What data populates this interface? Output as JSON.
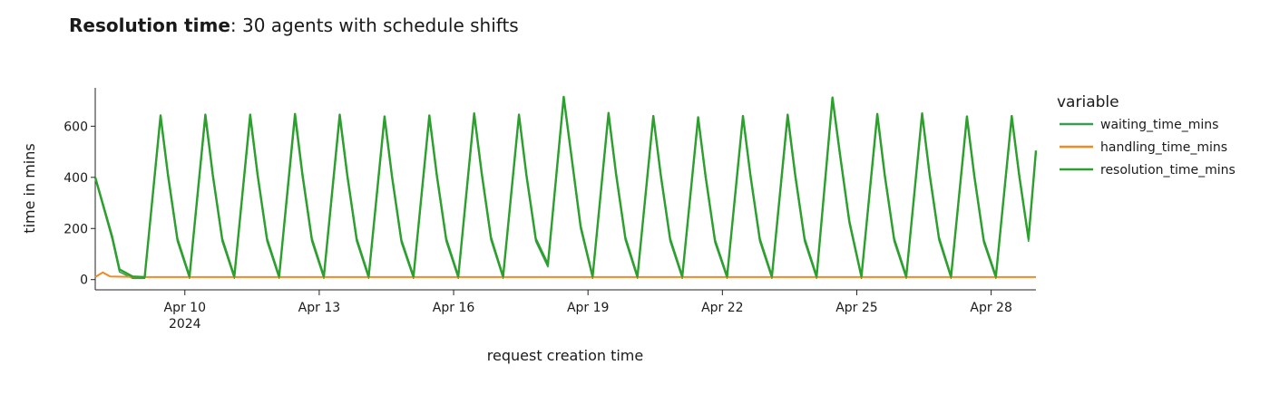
{
  "chart_data": {
    "type": "line",
    "title": "Resolution time",
    "subtitle": ": 30 agents with schedule shifts",
    "xlabel": "request creation time",
    "ylabel": "time in mins",
    "ylim": [
      -40,
      750
    ],
    "xlim": [
      "2024-04-08",
      "2024-04-29"
    ],
    "x_ticks": [
      {
        "date": "2024-04-10",
        "label": "Apr 10",
        "sublabel": "2024"
      },
      {
        "date": "2024-04-13",
        "label": "Apr 13",
        "sublabel": ""
      },
      {
        "date": "2024-04-16",
        "label": "Apr 16",
        "sublabel": ""
      },
      {
        "date": "2024-04-19",
        "label": "Apr 19",
        "sublabel": ""
      },
      {
        "date": "2024-04-22",
        "label": "Apr 22",
        "sublabel": ""
      },
      {
        "date": "2024-04-25",
        "label": "Apr 25",
        "sublabel": ""
      },
      {
        "date": "2024-04-28",
        "label": "Apr 28",
        "sublabel": ""
      }
    ],
    "y_ticks": [
      0,
      200,
      400,
      600
    ],
    "grid": false,
    "legend": {
      "title": "variable",
      "placement": "right"
    },
    "series": [
      {
        "name": "waiting_time_mins",
        "color": "#3a9b52",
        "x": [
          "2024-04-08 00:00",
          "2024-04-08 09:00",
          "2024-04-08 13:00",
          "2024-04-08 20:00",
          "2024-04-09 02:30",
          "2024-04-09 11:00",
          "2024-04-09 15:00",
          "2024-04-09 20:00",
          "2024-04-10 02:30",
          "2024-04-10 11:00",
          "2024-04-10 15:00",
          "2024-04-10 20:00",
          "2024-04-11 02:30",
          "2024-04-11 11:00",
          "2024-04-11 15:00",
          "2024-04-11 20:00",
          "2024-04-12 02:30",
          "2024-04-12 11:00",
          "2024-04-12 15:00",
          "2024-04-12 20:00",
          "2024-04-13 02:30",
          "2024-04-13 11:00",
          "2024-04-13 15:00",
          "2024-04-13 20:00",
          "2024-04-14 02:30",
          "2024-04-14 11:00",
          "2024-04-14 15:00",
          "2024-04-14 20:00",
          "2024-04-15 02:30",
          "2024-04-15 11:00",
          "2024-04-15 15:00",
          "2024-04-15 20:00",
          "2024-04-16 02:30",
          "2024-04-16 11:00",
          "2024-04-16 15:00",
          "2024-04-16 20:00",
          "2024-04-17 02:30",
          "2024-04-17 11:00",
          "2024-04-17 15:00",
          "2024-04-17 20:00",
          "2024-04-18 02:30",
          "2024-04-18 11:00",
          "2024-04-18 15:00",
          "2024-04-18 20:00",
          "2024-04-19 02:30",
          "2024-04-19 11:00",
          "2024-04-19 15:00",
          "2024-04-19 20:00",
          "2024-04-20 02:30",
          "2024-04-20 11:00",
          "2024-04-20 15:00",
          "2024-04-20 20:00",
          "2024-04-21 02:30",
          "2024-04-21 11:00",
          "2024-04-21 15:00",
          "2024-04-21 20:00",
          "2024-04-22 02:30",
          "2024-04-22 11:00",
          "2024-04-22 15:00",
          "2024-04-22 20:00",
          "2024-04-23 02:30",
          "2024-04-23 11:00",
          "2024-04-23 15:00",
          "2024-04-23 20:00",
          "2024-04-24 02:30",
          "2024-04-24 11:00",
          "2024-04-24 15:00",
          "2024-04-24 20:00",
          "2024-04-25 02:30",
          "2024-04-25 11:00",
          "2024-04-25 15:00",
          "2024-04-25 20:00",
          "2024-04-26 02:30",
          "2024-04-26 11:00",
          "2024-04-26 15:00",
          "2024-04-26 20:00",
          "2024-04-27 02:30",
          "2024-04-27 11:00",
          "2024-04-27 15:00",
          "2024-04-27 20:00",
          "2024-04-28 02:30",
          "2024-04-28 11:00",
          "2024-04-28 15:00",
          "2024-04-28 20:00",
          "2024-04-29 00:00"
        ],
        "y": [
          395,
          160,
          30,
          5,
          5,
          630,
          400,
          150,
          5,
          630,
          400,
          150,
          5,
          630,
          400,
          150,
          5,
          630,
          400,
          150,
          5,
          630,
          400,
          150,
          5,
          625,
          395,
          145,
          5,
          630,
          400,
          150,
          5,
          640,
          410,
          155,
          5,
          635,
          400,
          150,
          50,
          705,
          480,
          200,
          5,
          640,
          405,
          155,
          5,
          630,
          400,
          150,
          5,
          625,
          395,
          145,
          5,
          630,
          400,
          150,
          5,
          630,
          400,
          150,
          5,
          700,
          480,
          220,
          5,
          635,
          400,
          150,
          5,
          640,
          405,
          155,
          5,
          625,
          395,
          145,
          5,
          630,
          400,
          150,
          495
        ]
      },
      {
        "name": "handling_time_mins",
        "color": "#f08a24",
        "x": [
          "2024-04-08 00:00",
          "2024-04-08 04:00",
          "2024-04-08 08:00",
          "2024-04-09 00:00",
          "2024-04-12 00:00",
          "2024-04-16 00:00",
          "2024-04-20 00:00",
          "2024-04-24 00:00",
          "2024-04-29 00:00"
        ],
        "y": [
          10,
          28,
          12,
          10,
          10,
          10,
          10,
          10,
          10
        ]
      },
      {
        "name": "resolution_time_mins",
        "color": "#2ca02c",
        "x": [
          "2024-04-08 00:00",
          "2024-04-08 09:00",
          "2024-04-08 13:00",
          "2024-04-08 20:00",
          "2024-04-09 02:30",
          "2024-04-09 11:00",
          "2024-04-09 15:00",
          "2024-04-09 20:00",
          "2024-04-10 02:30",
          "2024-04-10 11:00",
          "2024-04-10 15:00",
          "2024-04-10 20:00",
          "2024-04-11 02:30",
          "2024-04-11 11:00",
          "2024-04-11 15:00",
          "2024-04-11 20:00",
          "2024-04-12 02:30",
          "2024-04-12 11:00",
          "2024-04-12 15:00",
          "2024-04-12 20:00",
          "2024-04-13 02:30",
          "2024-04-13 11:00",
          "2024-04-13 15:00",
          "2024-04-13 20:00",
          "2024-04-14 02:30",
          "2024-04-14 11:00",
          "2024-04-14 15:00",
          "2024-04-14 20:00",
          "2024-04-15 02:30",
          "2024-04-15 11:00",
          "2024-04-15 15:00",
          "2024-04-15 20:00",
          "2024-04-16 02:30",
          "2024-04-16 11:00",
          "2024-04-16 15:00",
          "2024-04-16 20:00",
          "2024-04-17 02:30",
          "2024-04-17 11:00",
          "2024-04-17 15:00",
          "2024-04-17 20:00",
          "2024-04-18 02:30",
          "2024-04-18 11:00",
          "2024-04-18 15:00",
          "2024-04-18 20:00",
          "2024-04-19 02:30",
          "2024-04-19 11:00",
          "2024-04-19 15:00",
          "2024-04-19 20:00",
          "2024-04-20 02:30",
          "2024-04-20 11:00",
          "2024-04-20 15:00",
          "2024-04-20 20:00",
          "2024-04-21 02:30",
          "2024-04-21 11:00",
          "2024-04-21 15:00",
          "2024-04-21 20:00",
          "2024-04-22 02:30",
          "2024-04-22 11:00",
          "2024-04-22 15:00",
          "2024-04-22 20:00",
          "2024-04-23 02:30",
          "2024-04-23 11:00",
          "2024-04-23 15:00",
          "2024-04-23 20:00",
          "2024-04-24 02:30",
          "2024-04-24 11:00",
          "2024-04-24 15:00",
          "2024-04-24 20:00",
          "2024-04-25 02:30",
          "2024-04-25 11:00",
          "2024-04-25 15:00",
          "2024-04-25 20:00",
          "2024-04-26 02:30",
          "2024-04-26 11:00",
          "2024-04-26 15:00",
          "2024-04-26 20:00",
          "2024-04-27 02:30",
          "2024-04-27 11:00",
          "2024-04-27 15:00",
          "2024-04-27 20:00",
          "2024-04-28 02:30",
          "2024-04-28 11:00",
          "2024-04-28 15:00",
          "2024-04-28 20:00",
          "2024-04-29 00:00"
        ],
        "y": [
          400,
          170,
          40,
          12,
          10,
          642,
          410,
          160,
          12,
          645,
          410,
          160,
          12,
          645,
          410,
          160,
          12,
          648,
          412,
          160,
          12,
          645,
          410,
          160,
          12,
          638,
          405,
          155,
          12,
          642,
          410,
          160,
          12,
          650,
          420,
          165,
          12,
          645,
          410,
          160,
          60,
          715,
          490,
          210,
          12,
          652,
          415,
          165,
          12,
          640,
          410,
          160,
          12,
          635,
          405,
          155,
          12,
          640,
          410,
          160,
          12,
          645,
          410,
          160,
          12,
          712,
          490,
          230,
          12,
          648,
          410,
          160,
          12,
          650,
          415,
          165,
          12,
          638,
          405,
          155,
          12,
          640,
          410,
          160,
          505
        ]
      }
    ]
  }
}
